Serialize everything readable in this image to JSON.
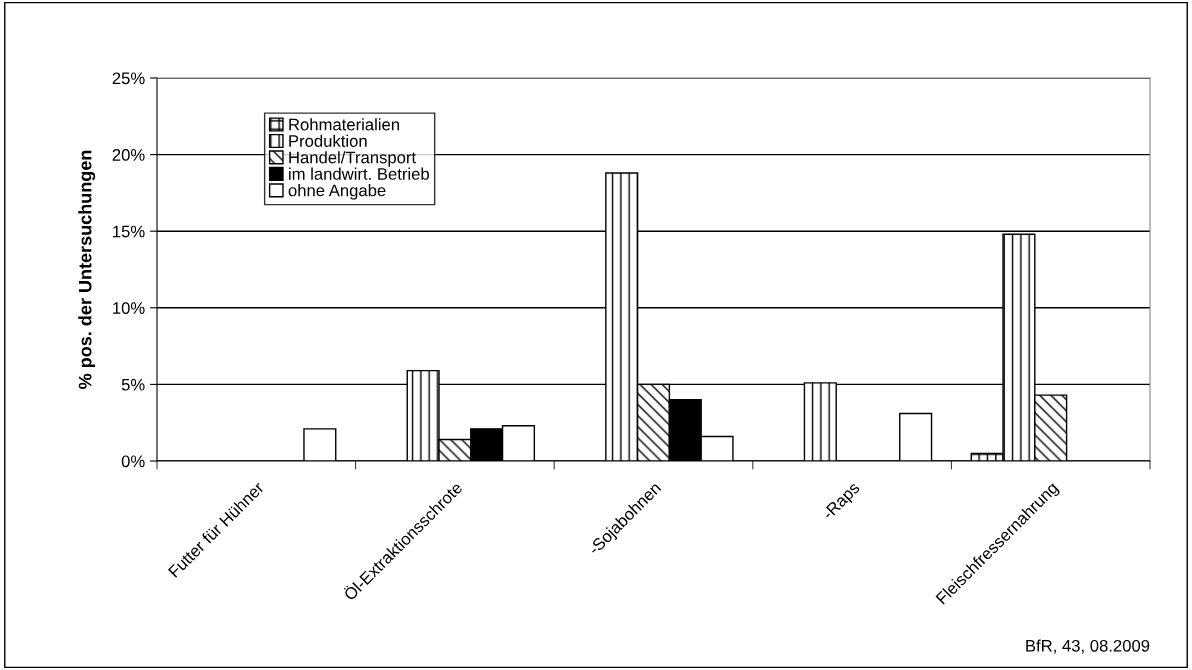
{
  "chart_data": {
    "type": "bar",
    "ylabel": "% pos. der Untersuchungen",
    "categories": [
      "Futter für Hühner",
      "Öl-Extraktionsschrote",
      "-Sojabohnen",
      "-Raps",
      "Fleischfressernahrung"
    ],
    "series": [
      {
        "name": "Rohmaterialien",
        "color": "#000000",
        "values": [
          null,
          null,
          null,
          null,
          0.5
        ]
      },
      {
        "name": "Produktion",
        "color": "#000000",
        "values": [
          null,
          5.9,
          18.8,
          5.1,
          14.8
        ]
      },
      {
        "name": "Handel/Transport",
        "color": "#000000",
        "values": [
          null,
          1.4,
          5.0,
          null,
          4.3
        ]
      },
      {
        "name": "im landwirt. Betrieb",
        "color": "#000000",
        "values": [
          null,
          2.1,
          4.0,
          null,
          null
        ]
      },
      {
        "name": "ohne Angabe",
        "color": "#ffffff",
        "values": [
          2.1,
          2.3,
          1.6,
          3.1,
          null
        ]
      }
    ],
    "ylim": [
      0,
      25
    ],
    "yticks": [
      {
        "value": 0,
        "label": "0%"
      },
      {
        "value": 5,
        "label": "5%"
      },
      {
        "value": 10,
        "label": "10%"
      },
      {
        "value": 15,
        "label": "15%"
      },
      {
        "value": 20,
        "label": "20%"
      },
      {
        "value": 25,
        "label": "25%"
      }
    ],
    "grid": "y",
    "legend": "top left",
    "annotations": [
      "BfR, 43, 08.2009"
    ]
  }
}
